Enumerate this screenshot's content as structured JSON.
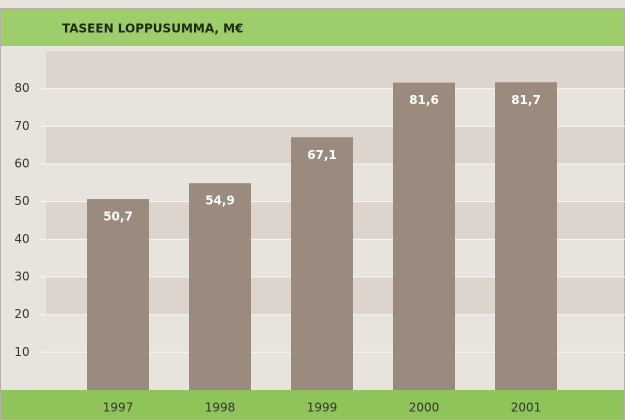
{
  "chart_data": {
    "type": "bar",
    "title": "TASEEN LOPPUSUMMA, M€",
    "categories": [
      "1997",
      "1998",
      "1999",
      "2000",
      "2001"
    ],
    "values": [
      50.7,
      54.9,
      67.1,
      81.6,
      81.7
    ],
    "value_labels": [
      "50,7",
      "54,9",
      "67,1",
      "81,6",
      "81,7"
    ],
    "color": "#9b8b7f",
    "ylim": [
      0,
      90
    ],
    "yticks": [
      10,
      20,
      30,
      40,
      50,
      60,
      70,
      80
    ],
    "grid": true
  }
}
